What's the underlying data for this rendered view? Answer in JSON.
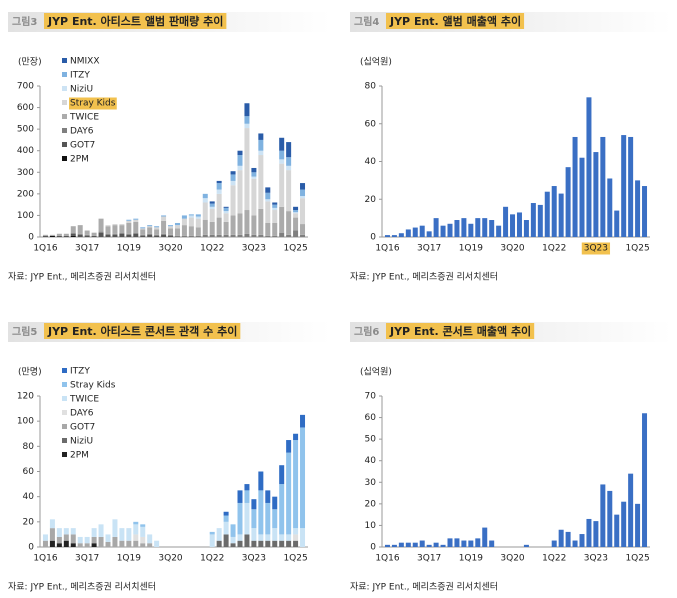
{
  "chart_data": [
    {
      "type": "bar",
      "stacked": true,
      "figure_label": "그림3",
      "title": "JYP Ent. 아티스트 앨범 판매량 추이",
      "ylabel": "(만장)",
      "source": "자료: JYP Ent., 메리츠증권 리서치센터",
      "categories": [
        "1Q16",
        null,
        null,
        null,
        null,
        null,
        "3Q17",
        null,
        null,
        null,
        null,
        null,
        "1Q19",
        null,
        null,
        null,
        null,
        null,
        "3Q20",
        null,
        null,
        null,
        null,
        null,
        "1Q22",
        null,
        null,
        null,
        null,
        null,
        "3Q23",
        null,
        null,
        null,
        null,
        null,
        "1Q25",
        null
      ],
      "ylim": [
        0,
        700
      ],
      "yticks": [
        0,
        100,
        200,
        300,
        400,
        500,
        600,
        700
      ],
      "legend": "top-left",
      "series": [
        {
          "name": "NMIXX",
          "color": "#2a5ca8",
          "values": [
            0,
            0,
            0,
            0,
            0,
            0,
            0,
            0,
            0,
            0,
            0,
            0,
            0,
            0,
            0,
            0,
            0,
            0,
            0,
            0,
            0,
            0,
            0,
            0,
            10,
            10,
            5,
            15,
            20,
            60,
            20,
            30,
            25,
            10,
            60,
            70,
            15,
            30
          ]
        },
        {
          "name": "ITZY",
          "color": "#7fb2e0",
          "values": [
            0,
            0,
            0,
            0,
            0,
            0,
            0,
            0,
            0,
            0,
            0,
            0,
            5,
            5,
            5,
            5,
            5,
            5,
            5,
            10,
            15,
            5,
            10,
            20,
            15,
            30,
            15,
            30,
            50,
            35,
            20,
            50,
            30,
            15,
            40,
            40,
            10,
            30
          ]
        },
        {
          "name": "NiziU",
          "color": "#cde3f4",
          "values": [
            0,
            0,
            0,
            0,
            0,
            0,
            0,
            0,
            0,
            0,
            0,
            0,
            0,
            0,
            0,
            0,
            0,
            0,
            0,
            0,
            0,
            10,
            10,
            20,
            10,
            20,
            10,
            20,
            20,
            20,
            10,
            20,
            10,
            10,
            20,
            20,
            5,
            10
          ]
        },
        {
          "name": "Stray Kids",
          "color": "#d6d6d6",
          "highlight": true,
          "values": [
            0,
            0,
            0,
            0,
            0,
            0,
            0,
            0,
            0,
            5,
            5,
            5,
            10,
            10,
            5,
            5,
            10,
            20,
            10,
            15,
            30,
            40,
            40,
            80,
            60,
            110,
            40,
            140,
            200,
            380,
            170,
            250,
            100,
            60,
            200,
            190,
            20,
            120
          ]
        },
        {
          "name": "TWICE",
          "color": "#ababab",
          "values": [
            5,
            5,
            10,
            10,
            30,
            40,
            20,
            15,
            60,
            35,
            40,
            35,
            50,
            50,
            25,
            30,
            25,
            60,
            30,
            35,
            50,
            45,
            40,
            70,
            60,
            80,
            60,
            90,
            100,
            110,
            90,
            120,
            60,
            60,
            120,
            110,
            60,
            50
          ]
        },
        {
          "name": "DAY6",
          "color": "#7f7f7f",
          "values": [
            0,
            0,
            0,
            0,
            5,
            5,
            5,
            0,
            5,
            5,
            5,
            5,
            5,
            5,
            5,
            5,
            5,
            5,
            5,
            5,
            5,
            5,
            5,
            10,
            10,
            10,
            10,
            10,
            10,
            15,
            10,
            10,
            5,
            5,
            20,
            10,
            30,
            10
          ]
        },
        {
          "name": "GOT7",
          "color": "#555555",
          "values": [
            5,
            0,
            5,
            5,
            10,
            10,
            5,
            5,
            20,
            10,
            10,
            15,
            10,
            15,
            5,
            10,
            5,
            10,
            5,
            0,
            0,
            0,
            0,
            0,
            0,
            0,
            0,
            0,
            0,
            0,
            0,
            0,
            0,
            0,
            0,
            0,
            0,
            0
          ]
        },
        {
          "name": "2PM",
          "color": "#111111",
          "values": [
            0,
            5,
            0,
            0,
            5,
            0,
            0,
            0,
            0,
            0,
            0,
            0,
            0,
            0,
            0,
            0,
            0,
            0,
            0,
            0,
            0,
            0,
            0,
            0,
            0,
            0,
            0,
            0,
            0,
            0,
            0,
            0,
            0,
            0,
            0,
            0,
            0,
            0
          ]
        }
      ]
    },
    {
      "type": "bar",
      "figure_label": "그림4",
      "title": "JYP Ent. 앨범 매출액 추이",
      "ylabel": "(십억원)",
      "source": "자료: JYP Ent., 메리츠증권 리서치센터",
      "categories": [
        "1Q16",
        null,
        null,
        null,
        null,
        null,
        "3Q17",
        null,
        null,
        null,
        null,
        null,
        "1Q19",
        null,
        null,
        null,
        null,
        null,
        "3Q20",
        null,
        null,
        null,
        null,
        null,
        "1Q22",
        null,
        null,
        null,
        null,
        null,
        "3Q23",
        null,
        null,
        null,
        null,
        null,
        "1Q25",
        null
      ],
      "highlighted_ticks": [
        30
      ],
      "color": "#3a6fc4",
      "values": [
        1,
        1,
        2,
        4,
        5,
        6,
        3,
        10,
        6,
        7,
        9,
        10,
        7,
        10,
        10,
        9,
        6,
        16,
        12,
        13,
        9,
        18,
        17,
        24,
        27,
        23,
        37,
        53,
        42,
        74,
        45,
        53,
        31,
        14,
        54,
        53,
        30,
        27
      ],
      "ylim": [
        0,
        80
      ],
      "yticks": [
        0,
        20,
        40,
        60,
        80
      ]
    },
    {
      "type": "bar",
      "stacked": true,
      "figure_label": "그림5",
      "title": "JYP Ent. 아티스트 콘서트 관객 수 추이",
      "ylabel": "(만명)",
      "source": "자료: JYP Ent., 메리츠증권 리서치센터",
      "categories": [
        "1Q16",
        null,
        null,
        null,
        null,
        null,
        "3Q17",
        null,
        null,
        null,
        null,
        null,
        "1Q19",
        null,
        null,
        null,
        null,
        null,
        "3Q20",
        null,
        null,
        null,
        null,
        null,
        "1Q22",
        null,
        null,
        null,
        null,
        null,
        "3Q23",
        null,
        null,
        null,
        null,
        null,
        "1Q25",
        null
      ],
      "ylim": [
        0,
        120
      ],
      "yticks": [
        0,
        20,
        40,
        60,
        80,
        100,
        120
      ],
      "legend": "top-left",
      "series": [
        {
          "name": "ITZY",
          "color": "#2f6cc4",
          "values": [
            0,
            0,
            0,
            0,
            0,
            0,
            0,
            0,
            0,
            0,
            0,
            0,
            0,
            0,
            0,
            0,
            0,
            0,
            0,
            0,
            0,
            0,
            0,
            0,
            0,
            0,
            3,
            0,
            10,
            5,
            8,
            15,
            10,
            10,
            15,
            10,
            5,
            10
          ]
        },
        {
          "name": "Stray Kids",
          "color": "#90c3ec",
          "values": [
            0,
            0,
            0,
            0,
            0,
            0,
            0,
            0,
            0,
            0,
            0,
            0,
            0,
            2,
            2,
            0,
            0,
            0,
            0,
            0,
            0,
            0,
            0,
            0,
            2,
            0,
            5,
            10,
            25,
            10,
            15,
            35,
            25,
            15,
            40,
            65,
            70,
            80
          ]
        },
        {
          "name": "TWICE",
          "color": "#c9e3f5",
          "values": [
            5,
            7,
            7,
            5,
            5,
            5,
            5,
            7,
            10,
            6,
            14,
            10,
            10,
            8,
            8,
            7,
            5,
            0,
            0,
            0,
            0,
            0,
            0,
            0,
            10,
            10,
            10,
            5,
            5,
            25,
            10,
            5,
            5,
            10,
            5,
            5,
            5,
            15
          ]
        },
        {
          "name": "DAY6",
          "color": "#e0e0e0",
          "values": [
            0,
            0,
            0,
            0,
            0,
            0,
            0,
            0,
            0,
            0,
            0,
            0,
            0,
            5,
            5,
            0,
            0,
            0,
            0,
            0,
            0,
            0,
            0,
            0,
            0,
            0,
            0,
            0,
            0,
            0,
            0,
            0,
            0,
            0,
            0,
            0,
            5,
            0
          ]
        },
        {
          "name": "GOT7",
          "color": "#a8a8a8",
          "values": [
            5,
            10,
            5,
            5,
            7,
            3,
            3,
            5,
            8,
            4,
            8,
            5,
            5,
            5,
            3,
            3,
            0,
            0,
            0,
            0,
            0,
            0,
            0,
            0,
            0,
            0,
            0,
            0,
            0,
            0,
            0,
            0,
            0,
            0,
            0,
            0,
            0,
            0
          ]
        },
        {
          "name": "NiziU",
          "color": "#6b6b6b",
          "values": [
            0,
            0,
            0,
            0,
            0,
            0,
            0,
            0,
            0,
            0,
            0,
            0,
            0,
            0,
            0,
            0,
            0,
            0,
            0,
            0,
            0,
            0,
            0,
            0,
            0,
            5,
            10,
            3,
            5,
            10,
            5,
            5,
            5,
            5,
            5,
            5,
            5,
            0
          ]
        },
        {
          "name": "2PM",
          "color": "#222222",
          "values": [
            0,
            5,
            3,
            5,
            3,
            0,
            0,
            3,
            0,
            0,
            0,
            0,
            0,
            0,
            0,
            0,
            0,
            0,
            0,
            0,
            0,
            0,
            0,
            0,
            0,
            0,
            0,
            0,
            0,
            0,
            0,
            0,
            0,
            0,
            0,
            0,
            0,
            0
          ]
        }
      ]
    },
    {
      "type": "bar",
      "figure_label": "그림6",
      "title": "JYP Ent. 콘서트 매출액 추이",
      "ylabel": "(십억원)",
      "source": "자료: JYP Ent., 메리츠증권 리서치센터",
      "categories": [
        "1Q16",
        null,
        null,
        null,
        null,
        null,
        "3Q17",
        null,
        null,
        null,
        null,
        null,
        "1Q19",
        null,
        null,
        null,
        null,
        null,
        "3Q20",
        null,
        null,
        null,
        null,
        null,
        "1Q22",
        null,
        null,
        null,
        null,
        null,
        "3Q23",
        null,
        null,
        null,
        null,
        null,
        "1Q25",
        null
      ],
      "color": "#3a6fc4",
      "values": [
        1,
        1,
        2,
        2,
        2,
        3,
        1,
        2,
        1,
        4,
        4,
        3,
        3,
        4,
        9,
        3,
        0,
        0,
        0,
        0,
        1,
        0,
        0,
        0,
        3,
        8,
        7,
        3,
        6,
        13,
        12,
        29,
        26,
        15,
        21,
        34,
        20,
        62
      ],
      "ylim": [
        0,
        70
      ],
      "yticks": [
        0,
        10,
        20,
        30,
        40,
        50,
        60,
        70
      ]
    }
  ]
}
